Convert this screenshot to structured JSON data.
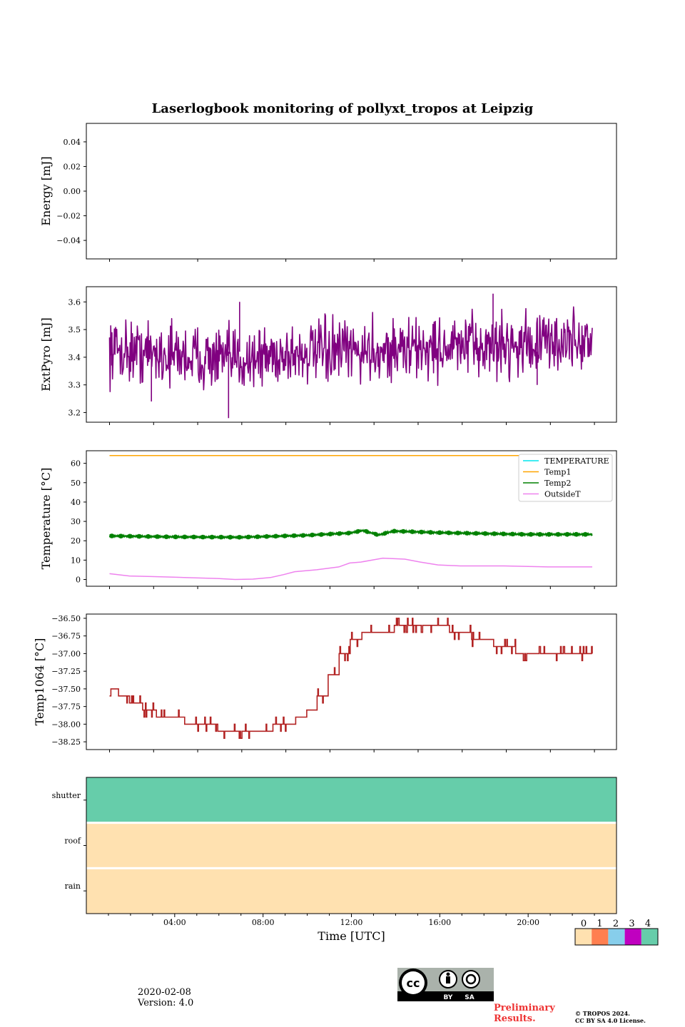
{
  "figure": {
    "title": "Laserlogbook monitoring of pollyxt_tropos at Leipzig",
    "date": "2020-02-08",
    "version": "Version: 4.0",
    "preliminary_line1": "Preliminary",
    "preliminary_line2": "Results.",
    "copyright_line1": "© TROPOS 2024.",
    "copyright_line2": "CC BY SA 4.0 License.",
    "license_badge": {
      "icon": "cc-by-sa-icon",
      "by_label": "BY",
      "sa_label": "SA"
    }
  },
  "chart_data": [
    {
      "type": "line",
      "name": "energy",
      "ylabel": "Energy [mJ]",
      "xlim": [
        0,
        24
      ],
      "ylim": [
        -0.055,
        0.055
      ],
      "yticks": [
        0.04,
        0.02,
        0.0,
        -0.02,
        -0.04
      ],
      "ytick_labels": [
        "0.04",
        "0.02",
        "0.00",
        "−0.02",
        "−0.04"
      ],
      "series": []
    },
    {
      "type": "line",
      "name": "extpyro",
      "ylabel": "ExtPyro [mJ]",
      "xlim": [
        0,
        24
      ],
      "ylim": [
        3.165,
        3.655
      ],
      "yticks": [
        3.6,
        3.5,
        3.4,
        3.3,
        3.2
      ],
      "ytick_labels": [
        "3.6",
        "3.5",
        "3.4",
        "3.3",
        "3.2"
      ],
      "series": [
        {
          "name": "ExtPyro",
          "color": "#800080",
          "x_range": [
            1.1,
            23
          ],
          "baseline": [
            [
              1.1,
              3.43
            ],
            [
              6.5,
              3.39
            ],
            [
              9,
              3.41
            ],
            [
              12,
              3.42
            ],
            [
              18,
              3.44
            ],
            [
              23,
              3.46
            ]
          ],
          "noise_std": 0.055,
          "points": 800,
          "spikes": [
            [
              1.2,
              3.37
            ],
            [
              3.0,
              3.24
            ],
            [
              6.5,
              3.18
            ],
            [
              7.0,
              3.6
            ],
            [
              18.5,
              3.63
            ],
            [
              20.5,
              3.3
            ]
          ]
        }
      ]
    },
    {
      "type": "line",
      "name": "temperature",
      "ylabel": "Temperature [°C]",
      "xlim": [
        0,
        24
      ],
      "ylim": [
        -3.5,
        66.5
      ],
      "yticks": [
        60,
        50,
        40,
        30,
        20,
        10,
        0
      ],
      "ytick_labels": [
        "60",
        "50",
        "40",
        "30",
        "20",
        "10",
        "0"
      ],
      "legend": "top-right",
      "series": [
        {
          "name": "TEMPERATURE",
          "color": "#00e5ee",
          "points": []
        },
        {
          "name": "Temp1",
          "color": "#ffa500",
          "points": [
            [
              1.1,
              64
            ],
            [
              23,
              64
            ]
          ]
        },
        {
          "name": "Temp2",
          "color": "#008000",
          "baseline": [
            [
              1.1,
              22.5
            ],
            [
              4,
              22
            ],
            [
              7,
              21.8
            ],
            [
              10,
              22.8
            ],
            [
              12,
              24
            ],
            [
              12.6,
              25.3
            ],
            [
              13.3,
              23
            ],
            [
              14,
              25
            ],
            [
              16,
              24.2
            ],
            [
              20,
              23.3
            ],
            [
              23,
              23.3
            ]
          ],
          "oscillation_amplitude": 1.2
        },
        {
          "name": "OutsideT",
          "color": "#ee82ee",
          "points": [
            [
              1.1,
              3
            ],
            [
              2,
              1.8
            ],
            [
              3,
              1.5
            ],
            [
              4,
              1.2
            ],
            [
              5,
              0.8
            ],
            [
              6,
              0.5
            ],
            [
              6.8,
              0
            ],
            [
              7.6,
              0.2
            ],
            [
              8.4,
              1
            ],
            [
              9,
              2.5
            ],
            [
              9.5,
              4
            ],
            [
              10.5,
              5
            ],
            [
              11.5,
              6.5
            ],
            [
              12,
              8.5
            ],
            [
              12.5,
              9
            ],
            [
              13,
              10
            ],
            [
              13.5,
              11
            ],
            [
              14.5,
              10.5
            ],
            [
              15.2,
              9
            ],
            [
              16,
              7.5
            ],
            [
              17,
              7
            ],
            [
              19,
              7
            ],
            [
              21,
              6.5
            ],
            [
              23,
              6.5
            ]
          ]
        }
      ]
    },
    {
      "type": "line",
      "name": "temp1064",
      "ylabel": "Temp1064 [°C]",
      "xlim": [
        0,
        24
      ],
      "ylim": [
        -38.36,
        -36.44
      ],
      "yticks": [
        -36.5,
        -36.75,
        -37.0,
        -37.25,
        -37.5,
        -37.75,
        -38.0,
        -38.25
      ],
      "ytick_labels": [
        "−36.50",
        "−36.75",
        "−37.00",
        "−37.25",
        "−37.50",
        "−37.75",
        "−38.00",
        "−38.25"
      ],
      "series": [
        {
          "name": "Temp1064",
          "color": "#b22222",
          "steps": [
            [
              1.1,
              -37.5
            ],
            [
              1.5,
              -37.6
            ],
            [
              2,
              -37.7
            ],
            [
              2.6,
              -37.8
            ],
            [
              3.2,
              -37.9
            ],
            [
              4.5,
              -38.0
            ],
            [
              6,
              -38.1
            ],
            [
              8.5,
              -38.0
            ],
            [
              9.5,
              -37.9
            ],
            [
              10,
              -37.8
            ],
            [
              10.5,
              -37.6
            ],
            [
              11,
              -37.3
            ],
            [
              11.5,
              -37.0
            ],
            [
              12,
              -36.8
            ],
            [
              12.5,
              -36.7
            ],
            [
              13.5,
              -36.7
            ],
            [
              14,
              -36.6
            ],
            [
              15.5,
              -36.6
            ],
            [
              16.5,
              -36.7
            ],
            [
              17.5,
              -36.8
            ],
            [
              18.5,
              -36.9
            ],
            [
              19.5,
              -37.0
            ],
            [
              23,
              -37.0
            ]
          ]
        }
      ]
    },
    {
      "type": "heatmap",
      "name": "status",
      "xlabel": "Time [UTC]",
      "xlim": [
        0,
        24
      ],
      "xticks": [
        4,
        8,
        12,
        16,
        20
      ],
      "xtick_labels": [
        "04:00",
        "08:00",
        "12:00",
        "16:00",
        "20:00"
      ],
      "rows": [
        {
          "label": "shutter",
          "status": 4
        },
        {
          "label": "roof",
          "status": 0
        },
        {
          "label": "rain",
          "status": 0
        }
      ],
      "colorbar": {
        "ticks": [
          "0",
          "1",
          "2",
          "3",
          "4"
        ],
        "colors": [
          "#ffe1b0",
          "#ff7f50",
          "#87ceeb",
          "#c000c0",
          "#66cdaa"
        ]
      }
    }
  ]
}
